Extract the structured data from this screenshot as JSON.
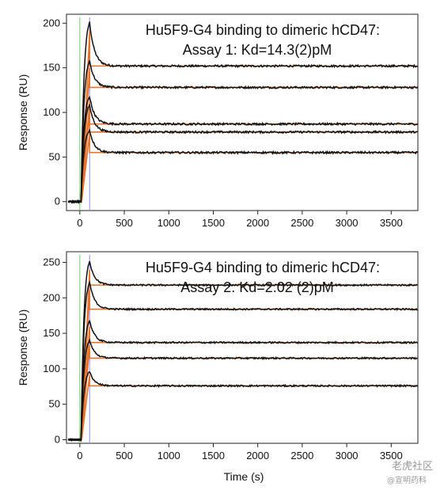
{
  "chart_data": [
    {
      "type": "line",
      "title": "Hu5F9-G4 binding to dimeric hCD47:",
      "subtitle": "Assay 1: Kd=14.3(2)pM",
      "xlabel": "",
      "ylabel": "Response (RU)",
      "xlim": [
        -150,
        3800
      ],
      "ylim": [
        -10,
        210
      ],
      "xticks": [
        0,
        500,
        1000,
        1500,
        2000,
        2500,
        3000,
        3500
      ],
      "yticks": [
        0,
        50,
        100,
        150,
        200
      ],
      "grid": false,
      "injection_end": 110,
      "series": [
        {
          "peak": 201,
          "plateau": 152
        },
        {
          "peak": 158,
          "plateau": 128
        },
        {
          "peak": 118,
          "plateau": 87
        },
        {
          "peak": 108,
          "plateau": 78
        },
        {
          "peak": 80,
          "plateau": 55
        }
      ]
    },
    {
      "type": "line",
      "title": "Hu5F9-G4 binding to dimeric hCD47:",
      "subtitle": "Assay 2: Kd=2.02 (2)pM",
      "xlabel": "Time (s)",
      "ylabel": "Response (RU)",
      "xlim": [
        -150,
        3800
      ],
      "ylim": [
        -5,
        265
      ],
      "xticks": [
        0,
        500,
        1000,
        1500,
        2000,
        2500,
        3000,
        3500
      ],
      "yticks": [
        0,
        50,
        100,
        150,
        200,
        250
      ],
      "grid": false,
      "injection_end": 110,
      "series": [
        {
          "peak": 252,
          "plateau": 218
        },
        {
          "peak": 222,
          "plateau": 184
        },
        {
          "peak": 168,
          "plateau": 137
        },
        {
          "peak": 140,
          "plateau": 115
        },
        {
          "peak": 96,
          "plateau": 76
        }
      ]
    }
  ],
  "watermark": {
    "text": "老虎社区",
    "sub": "@宣明药科"
  }
}
